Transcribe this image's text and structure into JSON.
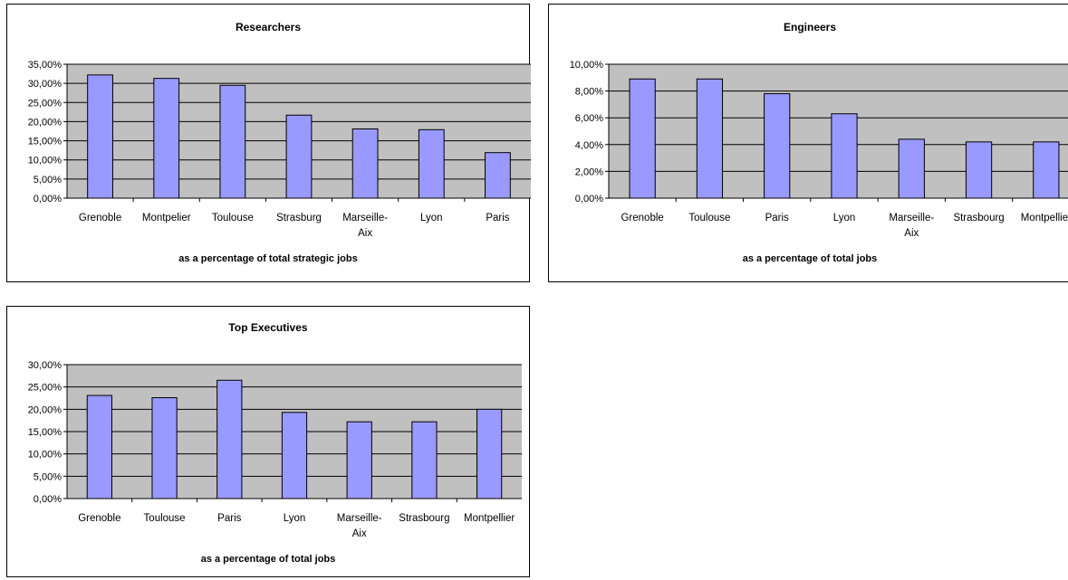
{
  "colors": {
    "plot_bg": "#c0c0c0",
    "bar_fill": "#9999ff",
    "bar_stroke": "#000000",
    "grid": "#000000"
  },
  "chart_data": [
    {
      "type": "bar",
      "title": "Researchers",
      "xlabel": "as a percentage of total strategic jobs",
      "ylabel": "",
      "categories": [
        "Grenoble",
        "Montpelier",
        "Toulouse",
        "Strasburg",
        "Marseille-Aix",
        "Lyon",
        "Paris"
      ],
      "category_lines": [
        [
          "Grenoble"
        ],
        [
          "Montpelier"
        ],
        [
          "Toulouse"
        ],
        [
          "Strasburg"
        ],
        [
          "Marseille-",
          "Aix"
        ],
        [
          "Lyon"
        ],
        [
          "Paris"
        ]
      ],
      "values": [
        32.2,
        31.3,
        29.5,
        21.7,
        18.1,
        17.9,
        11.9
      ],
      "ylim": [
        0,
        35
      ],
      "yticks": [
        0,
        5,
        10,
        15,
        20,
        25,
        30,
        35
      ],
      "ytick_labels": [
        "0,00%",
        "5,00%",
        "10,00%",
        "15,00%",
        "20,00%",
        "25,00%",
        "30,00%",
        "35,00%"
      ],
      "grid": true,
      "legend": "none"
    },
    {
      "type": "bar",
      "title": "Engineers",
      "xlabel": "as a percentage of total jobs",
      "ylabel": "",
      "categories": [
        "Grenoble",
        "Toulouse",
        "Paris",
        "Lyon",
        "Marseille-Aix",
        "Strasbourg",
        "Montpellier"
      ],
      "category_lines": [
        [
          "Grenoble"
        ],
        [
          "Toulouse"
        ],
        [
          "Paris"
        ],
        [
          "Lyon"
        ],
        [
          "Marseille-",
          "Aix"
        ],
        [
          "Strasbourg"
        ],
        [
          "Montpellier"
        ]
      ],
      "values": [
        8.9,
        8.9,
        7.8,
        6.3,
        4.4,
        4.2,
        4.2
      ],
      "ylim": [
        0,
        10
      ],
      "yticks": [
        0,
        2,
        4,
        6,
        8,
        10
      ],
      "ytick_labels": [
        "0,00%",
        "2,00%",
        "4,00%",
        "6,00%",
        "8,00%",
        "10,00%"
      ],
      "grid": true,
      "legend": "none"
    },
    {
      "type": "bar",
      "title": "Top Executives",
      "xlabel": "as a percentage of total jobs",
      "ylabel": "",
      "categories": [
        "Grenoble",
        "Toulouse",
        "Paris",
        "Lyon",
        "Marseille-Aix",
        "Strasbourg",
        "Montpellier"
      ],
      "category_lines": [
        [
          "Grenoble"
        ],
        [
          "Toulouse"
        ],
        [
          "Paris"
        ],
        [
          "Lyon"
        ],
        [
          "Marseille-",
          "Aix"
        ],
        [
          "Strasbourg"
        ],
        [
          "Montpellier"
        ]
      ],
      "values": [
        23.1,
        22.6,
        26.5,
        19.3,
        17.2,
        17.2,
        20.0
      ],
      "ylim": [
        0,
        30
      ],
      "yticks": [
        0,
        5,
        10,
        15,
        20,
        25,
        30
      ],
      "ytick_labels": [
        "0,00%",
        "5,00%",
        "10,00%",
        "15,00%",
        "20,00%",
        "25,00%",
        "30,00%"
      ],
      "grid": true,
      "legend": "none"
    }
  ]
}
